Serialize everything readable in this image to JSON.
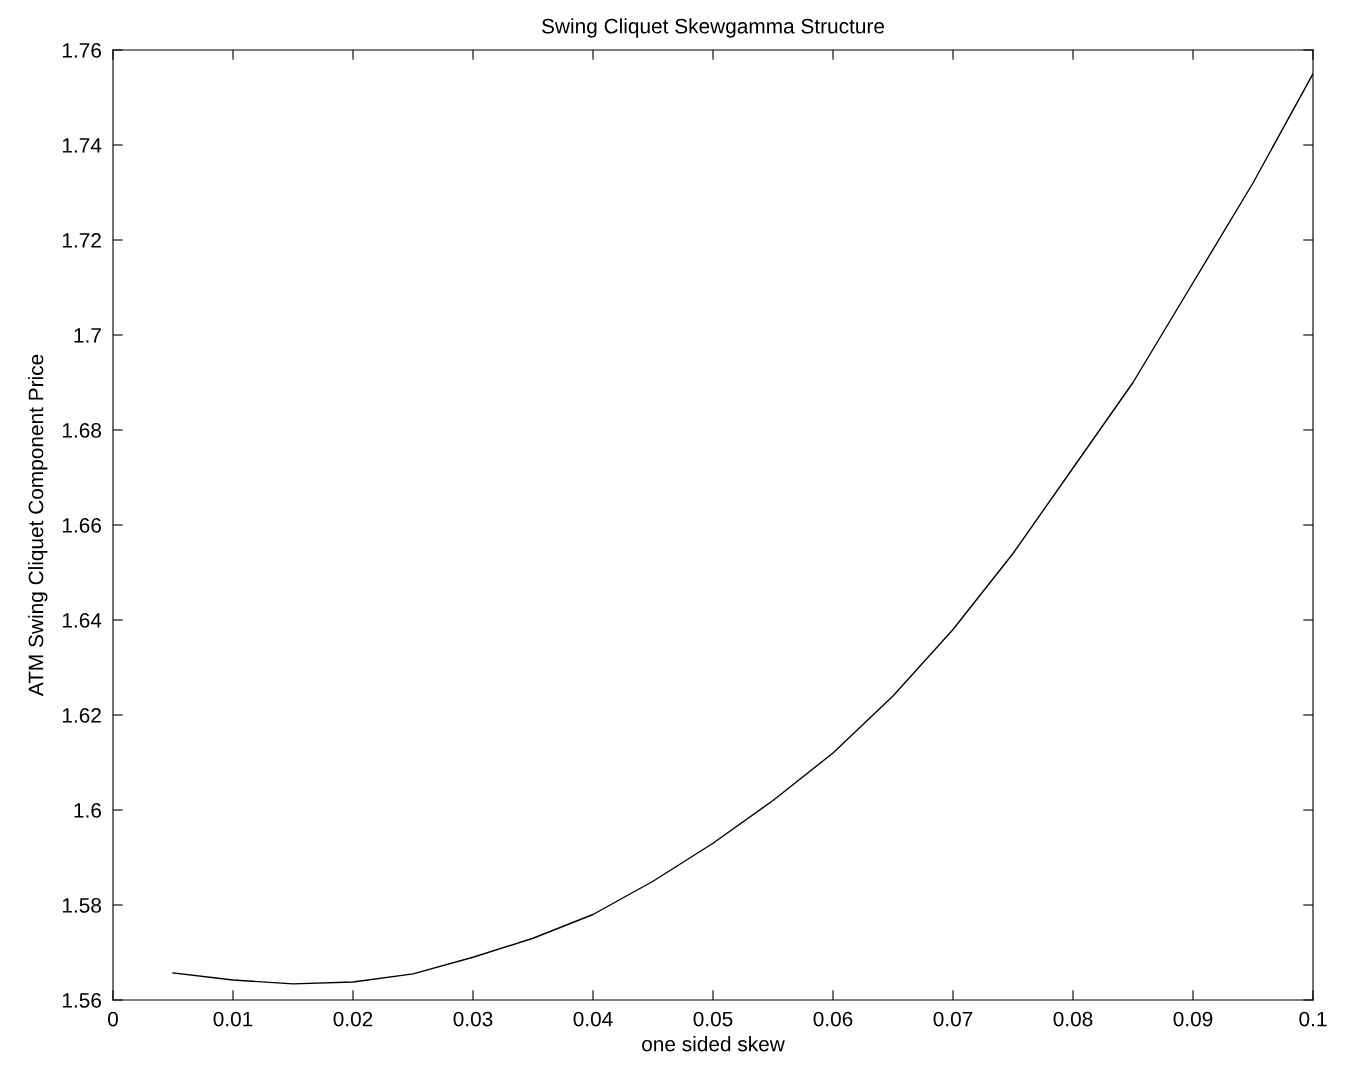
{
  "chart_data": {
    "type": "line",
    "title": "Swing Cliquet Skewgamma Structure",
    "xlabel": "one sided skew",
    "ylabel": "ATM Swing Cliquet Component Price",
    "x": [
      0.005,
      0.01,
      0.015,
      0.02,
      0.025,
      0.03,
      0.035,
      0.04,
      0.045,
      0.05,
      0.055,
      0.06,
      0.065,
      0.07,
      0.075,
      0.08,
      0.085,
      0.09,
      0.095,
      0.1
    ],
    "series": [
      {
        "color": "#000000",
        "values": [
          1.5657,
          1.5642,
          1.5634,
          1.5638,
          1.5655,
          1.569,
          1.573,
          1.578,
          1.585,
          1.593,
          1.602,
          1.612,
          1.624,
          1.638,
          1.654,
          1.672,
          1.69,
          1.711,
          1.732,
          1.755
        ]
      }
    ],
    "xlim": [
      0,
      0.1
    ],
    "xticks": [
      0,
      0.01,
      0.02,
      0.03,
      0.04,
      0.05,
      0.06,
      0.07,
      0.08,
      0.09,
      0.1
    ],
    "ylim": [
      1.56,
      1.76
    ],
    "yticks": [
      1.56,
      1.58,
      1.6,
      1.62,
      1.64,
      1.66,
      1.68,
      1.7,
      1.72,
      1.74,
      1.76
    ],
    "grid": false,
    "legend": false,
    "marker": "none",
    "line_style": "solid"
  }
}
